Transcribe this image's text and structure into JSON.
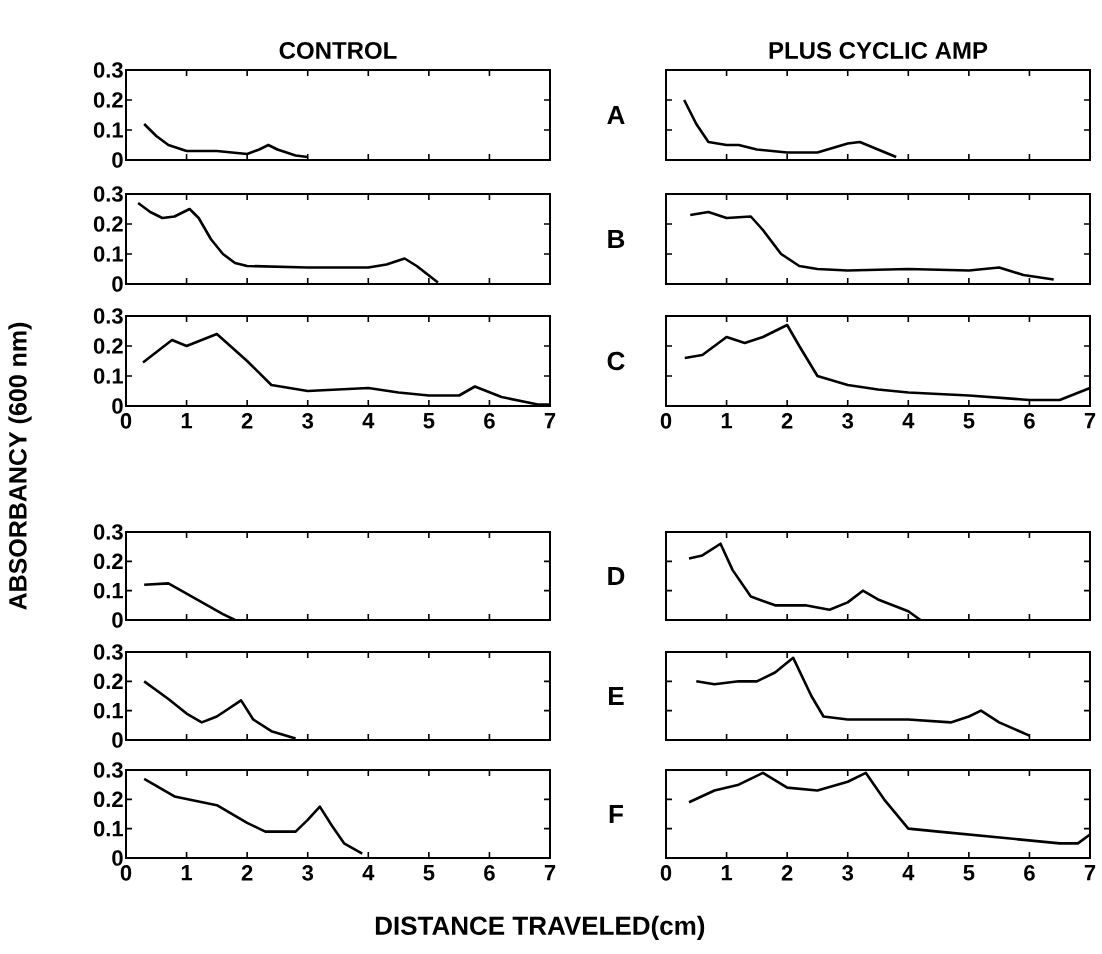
{
  "chart_data": [
    {
      "type": "line",
      "title": "CONTROL",
      "xlim": [
        0,
        7
      ],
      "ylim": [
        0,
        0.3
      ],
      "xticks": [
        0,
        1,
        2,
        3,
        4,
        5,
        6,
        7
      ],
      "yticks": [
        0,
        0.1,
        0.2,
        0.3
      ],
      "tick_labels": "y",
      "color": "#000000",
      "x": [
        0.3,
        0.5,
        0.7,
        1.0,
        1.5,
        2.0,
        2.2,
        2.35,
        2.5,
        2.8,
        3.0
      ],
      "values": [
        0.12,
        0.08,
        0.05,
        0.03,
        0.03,
        0.02,
        0.035,
        0.05,
        0.035,
        0.015,
        0.01
      ]
    },
    {
      "type": "line",
      "title": "PLUS CYCLIC AMP",
      "annotations": [
        "A"
      ],
      "xlim": [
        0,
        7
      ],
      "ylim": [
        0,
        0.3
      ],
      "xticks": [
        0,
        1,
        2,
        3,
        4,
        5,
        6,
        7
      ],
      "yticks": [
        0,
        0.1,
        0.2,
        0.3
      ],
      "tick_labels": false,
      "color": "#000000",
      "x": [
        0.3,
        0.5,
        0.7,
        1.0,
        1.2,
        1.5,
        2.0,
        2.5,
        3.0,
        3.2,
        3.5,
        3.8
      ],
      "values": [
        0.2,
        0.12,
        0.06,
        0.05,
        0.05,
        0.035,
        0.025,
        0.025,
        0.055,
        0.06,
        0.035,
        0.01
      ]
    },
    {
      "type": "line",
      "xlim": [
        0,
        7
      ],
      "ylim": [
        0,
        0.3
      ],
      "xticks": [
        0,
        1,
        2,
        3,
        4,
        5,
        6,
        7
      ],
      "yticks": [
        0,
        0.1,
        0.2,
        0.3
      ],
      "tick_labels": "y",
      "color": "#000000",
      "x": [
        0.2,
        0.4,
        0.6,
        0.8,
        1.05,
        1.2,
        1.4,
        1.6,
        1.8,
        2.0,
        3.0,
        4.0,
        4.3,
        4.6,
        4.8,
        5.15
      ],
      "values": [
        0.27,
        0.24,
        0.22,
        0.225,
        0.25,
        0.22,
        0.15,
        0.1,
        0.07,
        0.06,
        0.055,
        0.055,
        0.065,
        0.085,
        0.06,
        0.005
      ]
    },
    {
      "type": "line",
      "annotations": [
        "B"
      ],
      "xlim": [
        0,
        7
      ],
      "ylim": [
        0,
        0.3
      ],
      "xticks": [
        0,
        1,
        2,
        3,
        4,
        5,
        6,
        7
      ],
      "yticks": [
        0,
        0.1,
        0.2,
        0.3
      ],
      "tick_labels": false,
      "color": "#000000",
      "x": [
        0.4,
        0.7,
        1.0,
        1.4,
        1.6,
        1.9,
        2.2,
        2.5,
        3.0,
        4.0,
        5.0,
        5.5,
        5.9,
        6.4
      ],
      "values": [
        0.23,
        0.24,
        0.22,
        0.225,
        0.18,
        0.1,
        0.06,
        0.05,
        0.045,
        0.05,
        0.045,
        0.055,
        0.03,
        0.015
      ]
    },
    {
      "type": "line",
      "xlim": [
        0,
        7
      ],
      "ylim": [
        0,
        0.3
      ],
      "xticks": [
        0,
        1,
        2,
        3,
        4,
        5,
        6,
        7
      ],
      "yticks": [
        0,
        0.1,
        0.2,
        0.3
      ],
      "color": "#000000",
      "x": [
        0.28,
        0.76,
        1.0,
        1.5,
        2.0,
        2.4,
        3.0,
        4.0,
        4.5,
        5.0,
        5.5,
        5.76,
        6.2,
        6.8,
        7.0
      ],
      "values": [
        0.145,
        0.22,
        0.2,
        0.24,
        0.15,
        0.07,
        0.05,
        0.06,
        0.045,
        0.035,
        0.035,
        0.065,
        0.03,
        0.005,
        0.005
      ]
    },
    {
      "type": "line",
      "annotations": [
        "C"
      ],
      "xlim": [
        0,
        7
      ],
      "ylim": [
        0,
        0.3
      ],
      "xticks": [
        0,
        1,
        2,
        3,
        4,
        5,
        6,
        7
      ],
      "yticks": [
        0,
        0.1,
        0.2,
        0.3
      ],
      "tick_labels": "x",
      "color": "#000000",
      "x": [
        0.31,
        0.6,
        1.0,
        1.3,
        1.6,
        2.0,
        2.2,
        2.5,
        3.0,
        3.5,
        4.0,
        5.0,
        6.0,
        6.5,
        7.0
      ],
      "values": [
        0.16,
        0.17,
        0.23,
        0.21,
        0.23,
        0.27,
        0.2,
        0.1,
        0.07,
        0.055,
        0.045,
        0.035,
        0.02,
        0.02,
        0.06
      ]
    },
    {
      "type": "line",
      "ylabel": "ABSORBANCY (600 nm)",
      "xlim": [
        0,
        7
      ],
      "ylim": [
        0,
        0.3
      ],
      "xticks": [
        0,
        1,
        2,
        3,
        4,
        5,
        6,
        7
      ],
      "yticks": [
        0,
        0.1,
        0.2,
        0.3
      ],
      "tick_labels": "y",
      "color": "#000000",
      "x": [
        0.3,
        0.7,
        1.0,
        1.3,
        1.6,
        1.8
      ],
      "values": [
        0.12,
        0.125,
        0.09,
        0.055,
        0.02,
        0.0
      ]
    },
    {
      "type": "line",
      "annotations": [
        "D"
      ],
      "xlim": [
        0,
        7
      ],
      "ylim": [
        0,
        0.3
      ],
      "xticks": [
        0,
        1,
        2,
        3,
        4,
        5,
        6,
        7
      ],
      "yticks": [
        0,
        0.1,
        0.2,
        0.3
      ],
      "tick_labels": false,
      "color": "#000000",
      "x": [
        0.38,
        0.6,
        0.9,
        1.1,
        1.4,
        1.8,
        2.3,
        2.7,
        3.0,
        3.25,
        3.5,
        4.0,
        4.2
      ],
      "values": [
        0.21,
        0.22,
        0.26,
        0.17,
        0.08,
        0.05,
        0.05,
        0.035,
        0.06,
        0.1,
        0.07,
        0.03,
        0.0
      ]
    },
    {
      "type": "line",
      "xlim": [
        0,
        7
      ],
      "ylim": [
        0,
        0.3
      ],
      "xticks": [
        0,
        1,
        2,
        3,
        4,
        5,
        6,
        7
      ],
      "yticks": [
        0,
        0.1,
        0.2,
        0.3
      ],
      "tick_labels": "y",
      "color": "#000000",
      "x": [
        0.3,
        0.7,
        1.0,
        1.25,
        1.5,
        1.9,
        2.1,
        2.4,
        2.8
      ],
      "values": [
        0.2,
        0.14,
        0.09,
        0.06,
        0.08,
        0.135,
        0.07,
        0.03,
        0.005
      ]
    },
    {
      "type": "line",
      "annotations": [
        "E"
      ],
      "xlim": [
        0,
        7
      ],
      "ylim": [
        0,
        0.3
      ],
      "xticks": [
        0,
        1,
        2,
        3,
        4,
        5,
        6,
        7
      ],
      "yticks": [
        0,
        0.1,
        0.2,
        0.3
      ],
      "tick_labels": false,
      "color": "#000000",
      "x": [
        0.5,
        0.8,
        1.2,
        1.5,
        1.8,
        2.1,
        2.4,
        2.6,
        3.0,
        4.0,
        4.7,
        5.0,
        5.2,
        5.5,
        6.0
      ],
      "values": [
        0.2,
        0.19,
        0.2,
        0.2,
        0.23,
        0.28,
        0.15,
        0.08,
        0.07,
        0.07,
        0.06,
        0.08,
        0.1,
        0.06,
        0.015
      ]
    },
    {
      "type": "line",
      "xlabel": "DISTANCE TRAVELED(cm)",
      "xlim": [
        0,
        7
      ],
      "ylim": [
        0,
        0.3
      ],
      "xticks": [
        0,
        1,
        2,
        3,
        4,
        5,
        6,
        7
      ],
      "yticks": [
        0,
        0.1,
        0.2,
        0.3
      ],
      "color": "#000000",
      "x": [
        0.3,
        0.8,
        1.5,
        2.0,
        2.3,
        2.8,
        3.0,
        3.2,
        3.4,
        3.6,
        3.9
      ],
      "values": [
        0.27,
        0.21,
        0.18,
        0.12,
        0.09,
        0.09,
        0.13,
        0.175,
        0.11,
        0.05,
        0.015
      ]
    },
    {
      "type": "line",
      "annotations": [
        "F"
      ],
      "xlim": [
        0,
        7
      ],
      "ylim": [
        0,
        0.3
      ],
      "xticks": [
        0,
        1,
        2,
        3,
        4,
        5,
        6,
        7
      ],
      "yticks": [
        0,
        0.1,
        0.2,
        0.3
      ],
      "tick_labels": "x",
      "color": "#000000",
      "x": [
        0.38,
        0.8,
        1.2,
        1.6,
        2.0,
        2.5,
        3.0,
        3.3,
        3.6,
        4.0,
        4.5,
        5.5,
        6.0,
        6.5,
        6.8,
        7.0
      ],
      "values": [
        0.19,
        0.23,
        0.25,
        0.29,
        0.24,
        0.23,
        0.26,
        0.29,
        0.2,
        0.1,
        0.09,
        0.07,
        0.06,
        0.05,
        0.05,
        0.08
      ]
    }
  ]
}
